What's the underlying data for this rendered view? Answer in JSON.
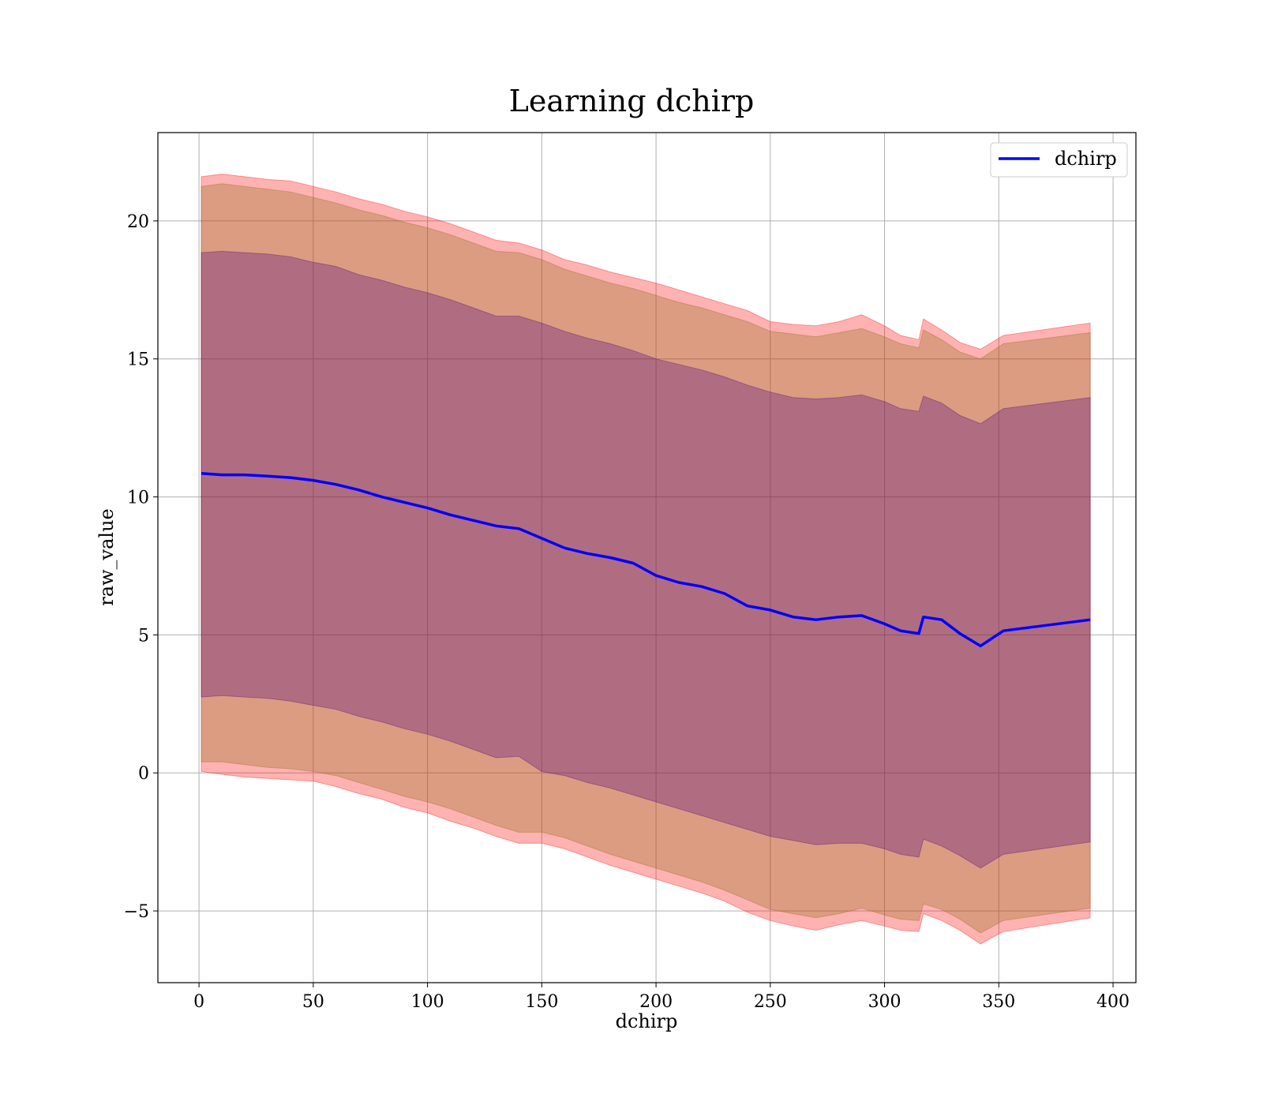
{
  "chart_data": {
    "type": "line",
    "title": "Learning dchirp",
    "xlabel": "dchirp",
    "ylabel": "raw_value",
    "xlim": [
      -18,
      410
    ],
    "ylim": [
      -7.6,
      23.2
    ],
    "xticks": [
      0,
      50,
      100,
      150,
      200,
      250,
      300,
      350,
      400
    ],
    "yticks": [
      -5,
      0,
      5,
      10,
      15,
      20
    ],
    "xtick_labels": [
      "0",
      "50",
      "100",
      "150",
      "200",
      "250",
      "300",
      "350",
      "400"
    ],
    "ytick_labels": [
      "−5",
      "0",
      "5",
      "10",
      "15",
      "20"
    ],
    "grid": true,
    "legend": {
      "position": "top-right",
      "entries": [
        "dchirp"
      ]
    },
    "colors": {
      "line": "#0000ff",
      "band_outer": "#ff0000",
      "band_mid": "#8b6914",
      "band_inner": "#4b0082"
    },
    "series": [
      {
        "name": "dchirp",
        "x": [
          1,
          10,
          20,
          30,
          40,
          50,
          60,
          70,
          80,
          90,
          100,
          110,
          120,
          130,
          140,
          150,
          160,
          170,
          180,
          190,
          200,
          210,
          220,
          230,
          240,
          250,
          260,
          270,
          280,
          290,
          300,
          307,
          315,
          317,
          325,
          333,
          342,
          352,
          390
        ],
        "y": [
          10.85,
          10.8,
          10.8,
          10.75,
          10.7,
          10.6,
          10.45,
          10.25,
          10.0,
          9.8,
          9.6,
          9.35,
          9.15,
          8.95,
          8.85,
          8.5,
          8.15,
          7.95,
          7.8,
          7.6,
          7.15,
          6.9,
          6.75,
          6.5,
          6.05,
          5.9,
          5.65,
          5.55,
          5.65,
          5.7,
          5.4,
          5.15,
          5.05,
          5.65,
          5.55,
          5.05,
          4.6,
          5.15,
          5.55
        ]
      }
    ],
    "bands": [
      {
        "level": "outer",
        "upper": [
          21.6,
          21.7,
          21.6,
          21.5,
          21.45,
          21.25,
          21.05,
          20.8,
          20.6,
          20.35,
          20.15,
          19.9,
          19.6,
          19.3,
          19.2,
          18.95,
          18.6,
          18.4,
          18.15,
          17.95,
          17.75,
          17.5,
          17.25,
          17.0,
          16.75,
          16.35,
          16.25,
          16.2,
          16.35,
          16.6,
          16.2,
          15.85,
          15.7,
          16.45,
          16.05,
          15.6,
          15.35,
          15.85,
          16.3
        ],
        "lower": [
          0.05,
          -0.05,
          -0.15,
          -0.2,
          -0.25,
          -0.3,
          -0.5,
          -0.75,
          -0.95,
          -1.25,
          -1.45,
          -1.75,
          -2.0,
          -2.3,
          -2.55,
          -2.55,
          -2.75,
          -3.05,
          -3.35,
          -3.6,
          -3.85,
          -4.1,
          -4.35,
          -4.65,
          -5.05,
          -5.35,
          -5.55,
          -5.7,
          -5.5,
          -5.35,
          -5.55,
          -5.7,
          -5.75,
          -5.1,
          -5.35,
          -5.7,
          -6.2,
          -5.75,
          -5.25
        ]
      },
      {
        "level": "mid",
        "upper": [
          21.25,
          21.35,
          21.25,
          21.15,
          21.05,
          20.85,
          20.65,
          20.4,
          20.2,
          19.95,
          19.75,
          19.5,
          19.2,
          18.9,
          18.85,
          18.6,
          18.25,
          18.0,
          17.75,
          17.55,
          17.3,
          17.05,
          16.85,
          16.6,
          16.35,
          16.0,
          15.9,
          15.8,
          15.95,
          16.1,
          15.8,
          15.55,
          15.4,
          16.05,
          15.7,
          15.25,
          15.0,
          15.55,
          15.95
        ],
        "lower": [
          0.4,
          0.4,
          0.3,
          0.2,
          0.15,
          0.05,
          -0.1,
          -0.35,
          -0.6,
          -0.85,
          -1.05,
          -1.3,
          -1.6,
          -1.9,
          -2.15,
          -2.15,
          -2.35,
          -2.65,
          -2.95,
          -3.2,
          -3.45,
          -3.7,
          -3.95,
          -4.25,
          -4.6,
          -4.95,
          -5.1,
          -5.25,
          -5.1,
          -4.9,
          -5.15,
          -5.3,
          -5.35,
          -4.75,
          -4.95,
          -5.3,
          -5.8,
          -5.35,
          -4.9
        ]
      },
      {
        "level": "inner",
        "upper": [
          18.85,
          18.9,
          18.85,
          18.8,
          18.7,
          18.5,
          18.35,
          18.05,
          17.85,
          17.6,
          17.4,
          17.15,
          16.85,
          16.55,
          16.55,
          16.3,
          16.0,
          15.75,
          15.55,
          15.3,
          15.0,
          14.8,
          14.6,
          14.35,
          14.05,
          13.8,
          13.6,
          13.55,
          13.6,
          13.7,
          13.45,
          13.2,
          13.1,
          13.65,
          13.4,
          12.95,
          12.65,
          13.2,
          13.6
        ],
        "lower": [
          2.75,
          2.8,
          2.75,
          2.7,
          2.6,
          2.45,
          2.3,
          2.05,
          1.85,
          1.6,
          1.4,
          1.15,
          0.85,
          0.55,
          0.6,
          0.05,
          -0.1,
          -0.35,
          -0.55,
          -0.8,
          -1.05,
          -1.3,
          -1.55,
          -1.8,
          -2.05,
          -2.3,
          -2.45,
          -2.6,
          -2.55,
          -2.55,
          -2.75,
          -2.95,
          -3.05,
          -2.4,
          -2.65,
          -3.0,
          -3.45,
          -2.95,
          -2.5
        ]
      }
    ]
  }
}
